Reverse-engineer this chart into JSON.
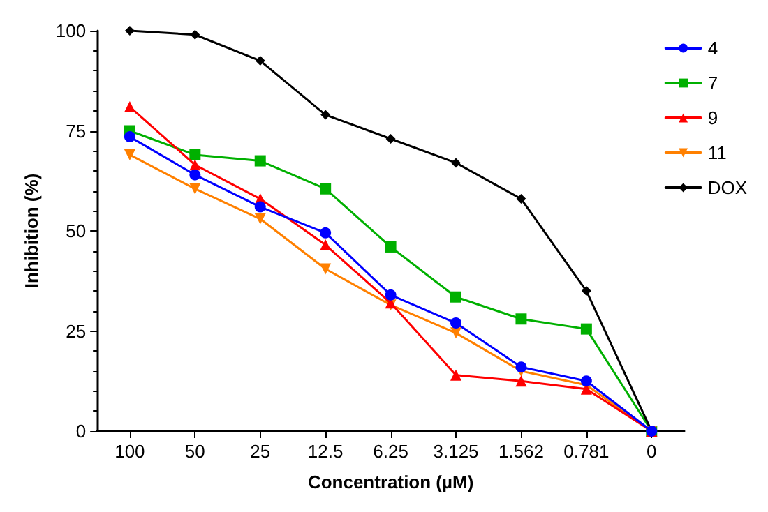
{
  "chart_data": {
    "type": "line",
    "xlabel": "Concentration (µM)",
    "ylabel": "Inhibition (%)",
    "categories": [
      "100",
      "50",
      "25",
      "12.5",
      "6.25",
      "3.125",
      "1.562",
      "0.781",
      "0"
    ],
    "ylim": [
      0,
      100
    ],
    "yticks": [
      0,
      {
        "value": 5,
        "label": null
      },
      {
        "value": 10,
        "label": null
      },
      {
        "value": 15,
        "label": null
      },
      {
        "value": 20,
        "label": null
      },
      25,
      {
        "value": 30,
        "label": null
      },
      {
        "value": 35,
        "label": null
      },
      {
        "value": 40,
        "label": null
      },
      {
        "value": 45,
        "label": null
      },
      50,
      {
        "value": 55,
        "label": null
      },
      {
        "value": 60,
        "label": null
      },
      {
        "value": 65,
        "label": null
      },
      {
        "value": 70,
        "label": null
      },
      75,
      {
        "value": 80,
        "label": null
      },
      {
        "value": 85,
        "label": null
      },
      {
        "value": 90,
        "label": null
      },
      {
        "value": 95,
        "label": null
      },
      100
    ],
    "grid": false,
    "legend": "top right",
    "line_style": "solid",
    "series": [
      {
        "name": "4",
        "color": "#0000ff",
        "marker": "circle",
        "values": [
          73.5,
          64,
          56,
          49.5,
          34,
          27,
          16,
          12.5,
          0
        ]
      },
      {
        "name": "7",
        "color": "#00b000",
        "marker": "square",
        "values": [
          75,
          69,
          67.5,
          60.5,
          46,
          33.5,
          28,
          25.5,
          0
        ]
      },
      {
        "name": "9",
        "color": "#ff0000",
        "marker": "triangle",
        "values": [
          81,
          66.5,
          58,
          46.5,
          32,
          14,
          12.5,
          10.5,
          0
        ]
      },
      {
        "name": "11",
        "color": "#ff8000",
        "marker": "triangle-down",
        "values": [
          69,
          60.5,
          53,
          40.5,
          31.5,
          24.5,
          15,
          11.5,
          0
        ]
      },
      {
        "name": "DOX",
        "color": "#000000",
        "marker": "diamond",
        "values": [
          100,
          99,
          92.5,
          79,
          73,
          67,
          58,
          35,
          0
        ]
      }
    ]
  }
}
